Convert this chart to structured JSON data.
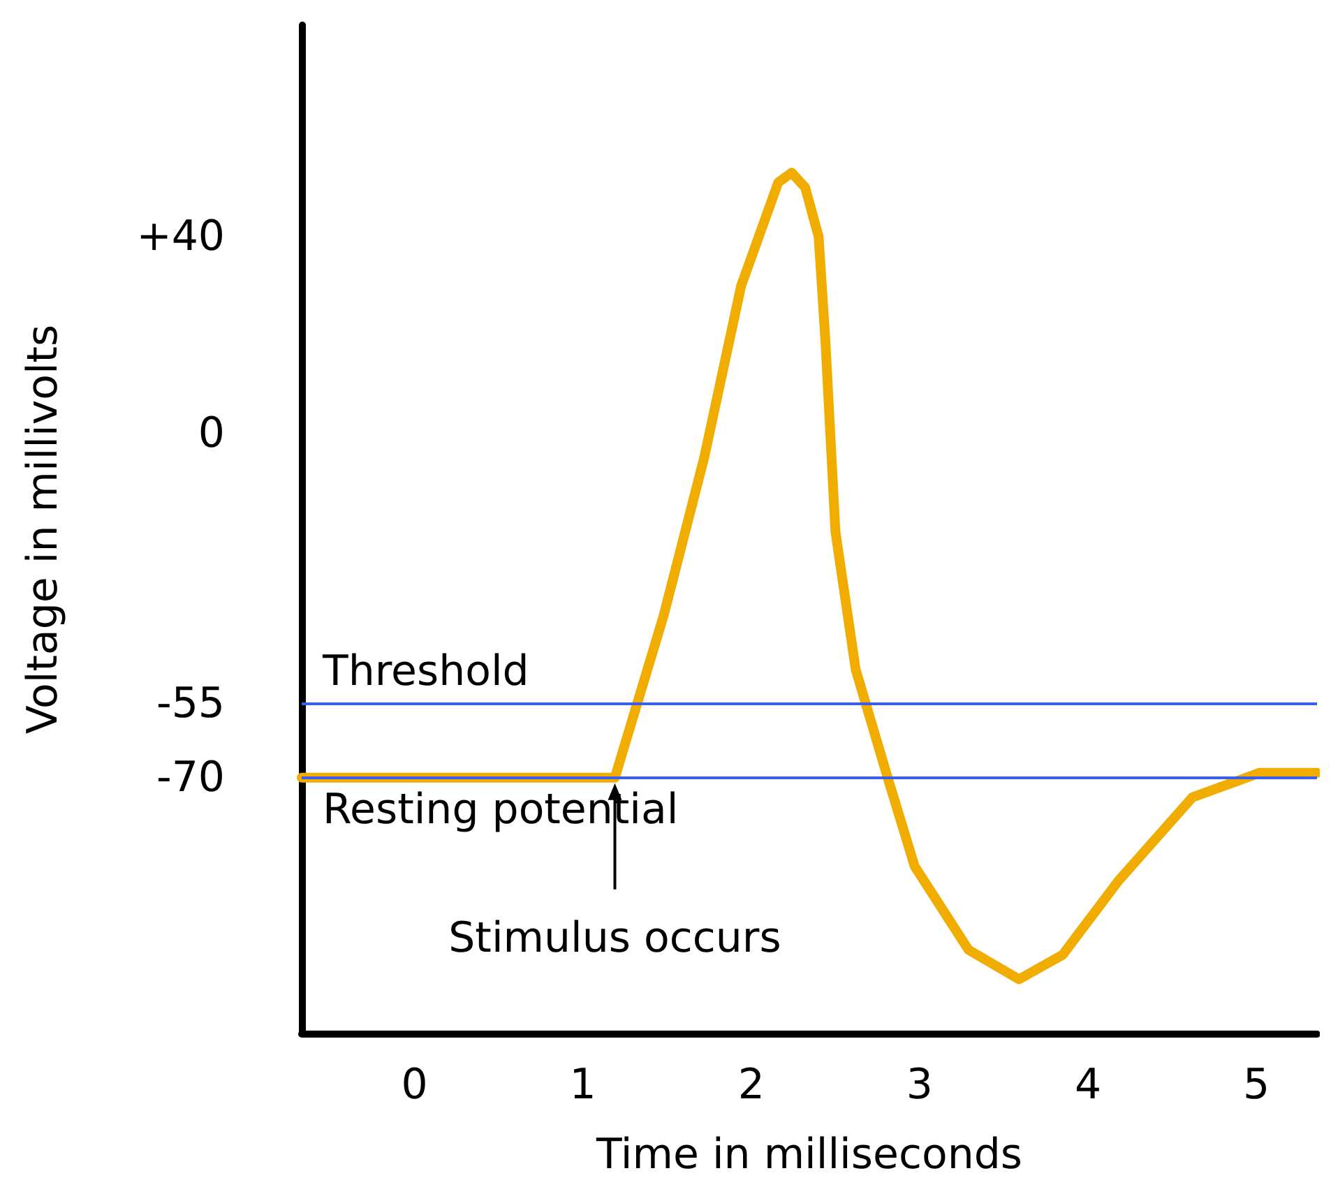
{
  "chart_data": {
    "type": "line",
    "xlabel": "Time in milliseconds",
    "ylabel": "Voltage in millivolts",
    "x": [
      -0.67,
      1.19,
      1.48,
      1.72,
      1.94,
      2.16,
      2.24,
      2.32,
      2.4,
      2.44,
      2.5,
      2.62,
      2.81,
      2.97,
      3.29,
      3.59,
      3.85,
      4.18,
      4.62,
      5.02,
      5.36
    ],
    "series": [
      {
        "color": "#f0ad00",
        "values": [
          -70,
          -70,
          -37,
          -5,
          30,
          51,
          53,
          50,
          40,
          19,
          -20,
          -48,
          -70,
          -88,
          -105,
          -111,
          -106,
          -91,
          -74,
          -69,
          -69
        ]
      }
    ],
    "xlim": [
      -0.67,
      5.36
    ],
    "xticks": [
      0,
      1,
      2,
      3,
      4,
      5
    ],
    "ylim": [
      -122,
      83
    ],
    "yticks": [
      {
        "value": 40,
        "label": "+40"
      },
      0,
      -55,
      -70
    ],
    "ref_lines": [
      {
        "axis": "y",
        "value": -55,
        "label": "Threshold",
        "color": "#3b5ee8"
      },
      {
        "axis": "y",
        "value": -70,
        "label": "Resting potential",
        "color": "#3b5ee8"
      }
    ],
    "annotations": [
      {
        "text": "Stimulus occurs",
        "x": 1.19,
        "y": -70
      }
    ],
    "grid": false,
    "line_style": "solid"
  }
}
